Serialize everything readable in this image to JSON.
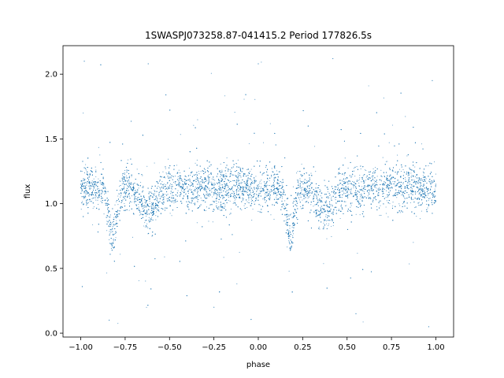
{
  "chart_data": {
    "type": "scatter",
    "title": "1SWASPJ073258.87-041415.2 Period 177826.5s",
    "xlabel": "phase",
    "ylabel": "flux",
    "xlim": [
      -1.1,
      1.1
    ],
    "ylim": [
      -0.03,
      2.22
    ],
    "x_ticks": [
      -1.0,
      -0.75,
      -0.5,
      -0.25,
      0.0,
      0.25,
      0.5,
      0.75,
      1.0
    ],
    "x_tick_labels": [
      "−1.00",
      "−0.75",
      "−0.50",
      "−0.25",
      "0.00",
      "0.25",
      "0.50",
      "0.75",
      "1.00"
    ],
    "y_ticks": [
      0.0,
      0.5,
      1.0,
      1.5,
      2.0
    ],
    "y_tick_labels": [
      "0.0",
      "0.5",
      "1.0",
      "1.5",
      "2.0"
    ],
    "grid": false,
    "marker_color": "#1f77b4",
    "baseline_flux": 1.12,
    "primary_eclipse": {
      "phases": [
        -0.82,
        0.18
      ],
      "min_flux": 0.75
    },
    "secondary_dip": {
      "phases": [
        -0.62,
        0.38
      ],
      "min_flux": 0.95
    },
    "points": [
      [
        -1.0,
        1.15
      ],
      [
        -0.95,
        1.12
      ],
      [
        -0.9,
        1.1
      ],
      [
        -0.86,
        1.0
      ],
      [
        -0.83,
        0.78
      ],
      [
        -0.8,
        0.85
      ],
      [
        -0.76,
        1.05
      ],
      [
        -0.7,
        1.12
      ],
      [
        -0.65,
        1.1
      ],
      [
        -0.6,
        1.08
      ],
      [
        -0.55,
        1.12
      ],
      [
        -0.5,
        1.12
      ],
      [
        -0.4,
        1.13
      ],
      [
        -0.3,
        1.12
      ],
      [
        -0.2,
        1.13
      ],
      [
        -0.1,
        1.12
      ],
      [
        0.0,
        1.12
      ],
      [
        0.08,
        1.1
      ],
      [
        0.14,
        1.0
      ],
      [
        0.17,
        0.78
      ],
      [
        0.2,
        0.85
      ],
      [
        0.24,
        1.05
      ],
      [
        0.3,
        1.12
      ],
      [
        0.35,
        1.1
      ],
      [
        0.4,
        1.08
      ],
      [
        0.45,
        1.12
      ],
      [
        0.5,
        1.12
      ],
      [
        0.6,
        1.13
      ],
      [
        0.7,
        1.12
      ],
      [
        0.8,
        1.13
      ],
      [
        0.9,
        1.12
      ],
      [
        1.0,
        1.15
      ],
      [
        -0.98,
        2.1
      ],
      [
        -0.62,
        2.08
      ],
      [
        0.0,
        2.08
      ],
      [
        0.42,
        2.12
      ],
      [
        0.98,
        1.95
      ],
      [
        -0.84,
        0.1
      ],
      [
        -0.25,
        0.2
      ],
      [
        0.55,
        0.15
      ],
      [
        0.96,
        0.05
      ]
    ]
  }
}
